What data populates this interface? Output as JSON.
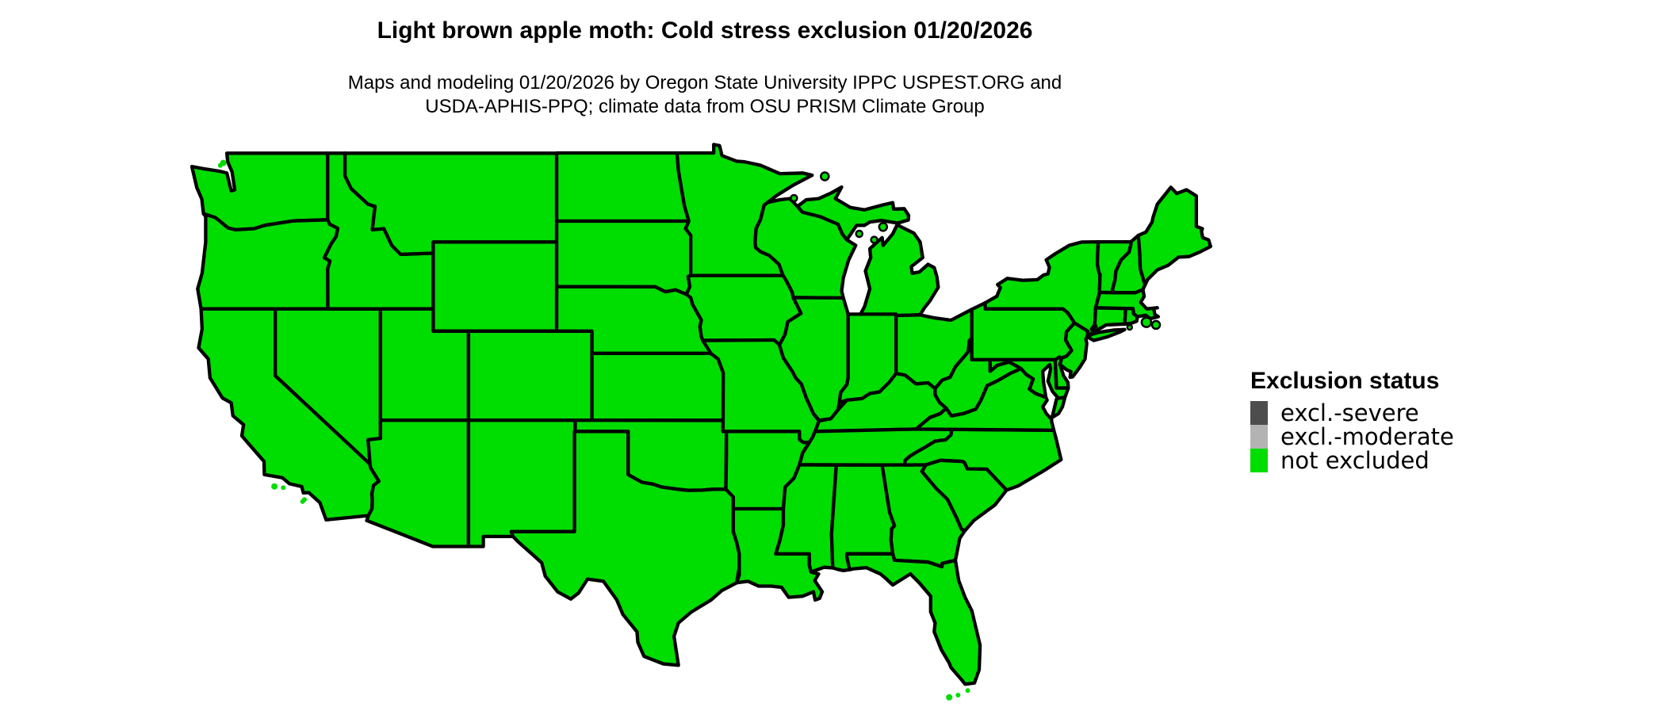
{
  "header": {
    "title": "Light brown apple moth: Cold stress exclusion 01/20/2026",
    "subtitle_line1": "Maps and modeling 01/20/2026 by Oregon State University IPPC USPEST.ORG and",
    "subtitle_line2": "USDA-APHIS-PPQ; climate data from OSU PRISM Climate Group"
  },
  "legend": {
    "title": "Exclusion status",
    "items": [
      {
        "label": "excl.-severe",
        "color": "#4d4d4d"
      },
      {
        "label": "excl.-moderate",
        "color": "#b3b3b3"
      },
      {
        "label": "not excluded",
        "color": "#00dd00"
      }
    ]
  },
  "map": {
    "status_fill_color": "#00dd00",
    "border_color": "#000000",
    "background_color": "#ffffff"
  }
}
